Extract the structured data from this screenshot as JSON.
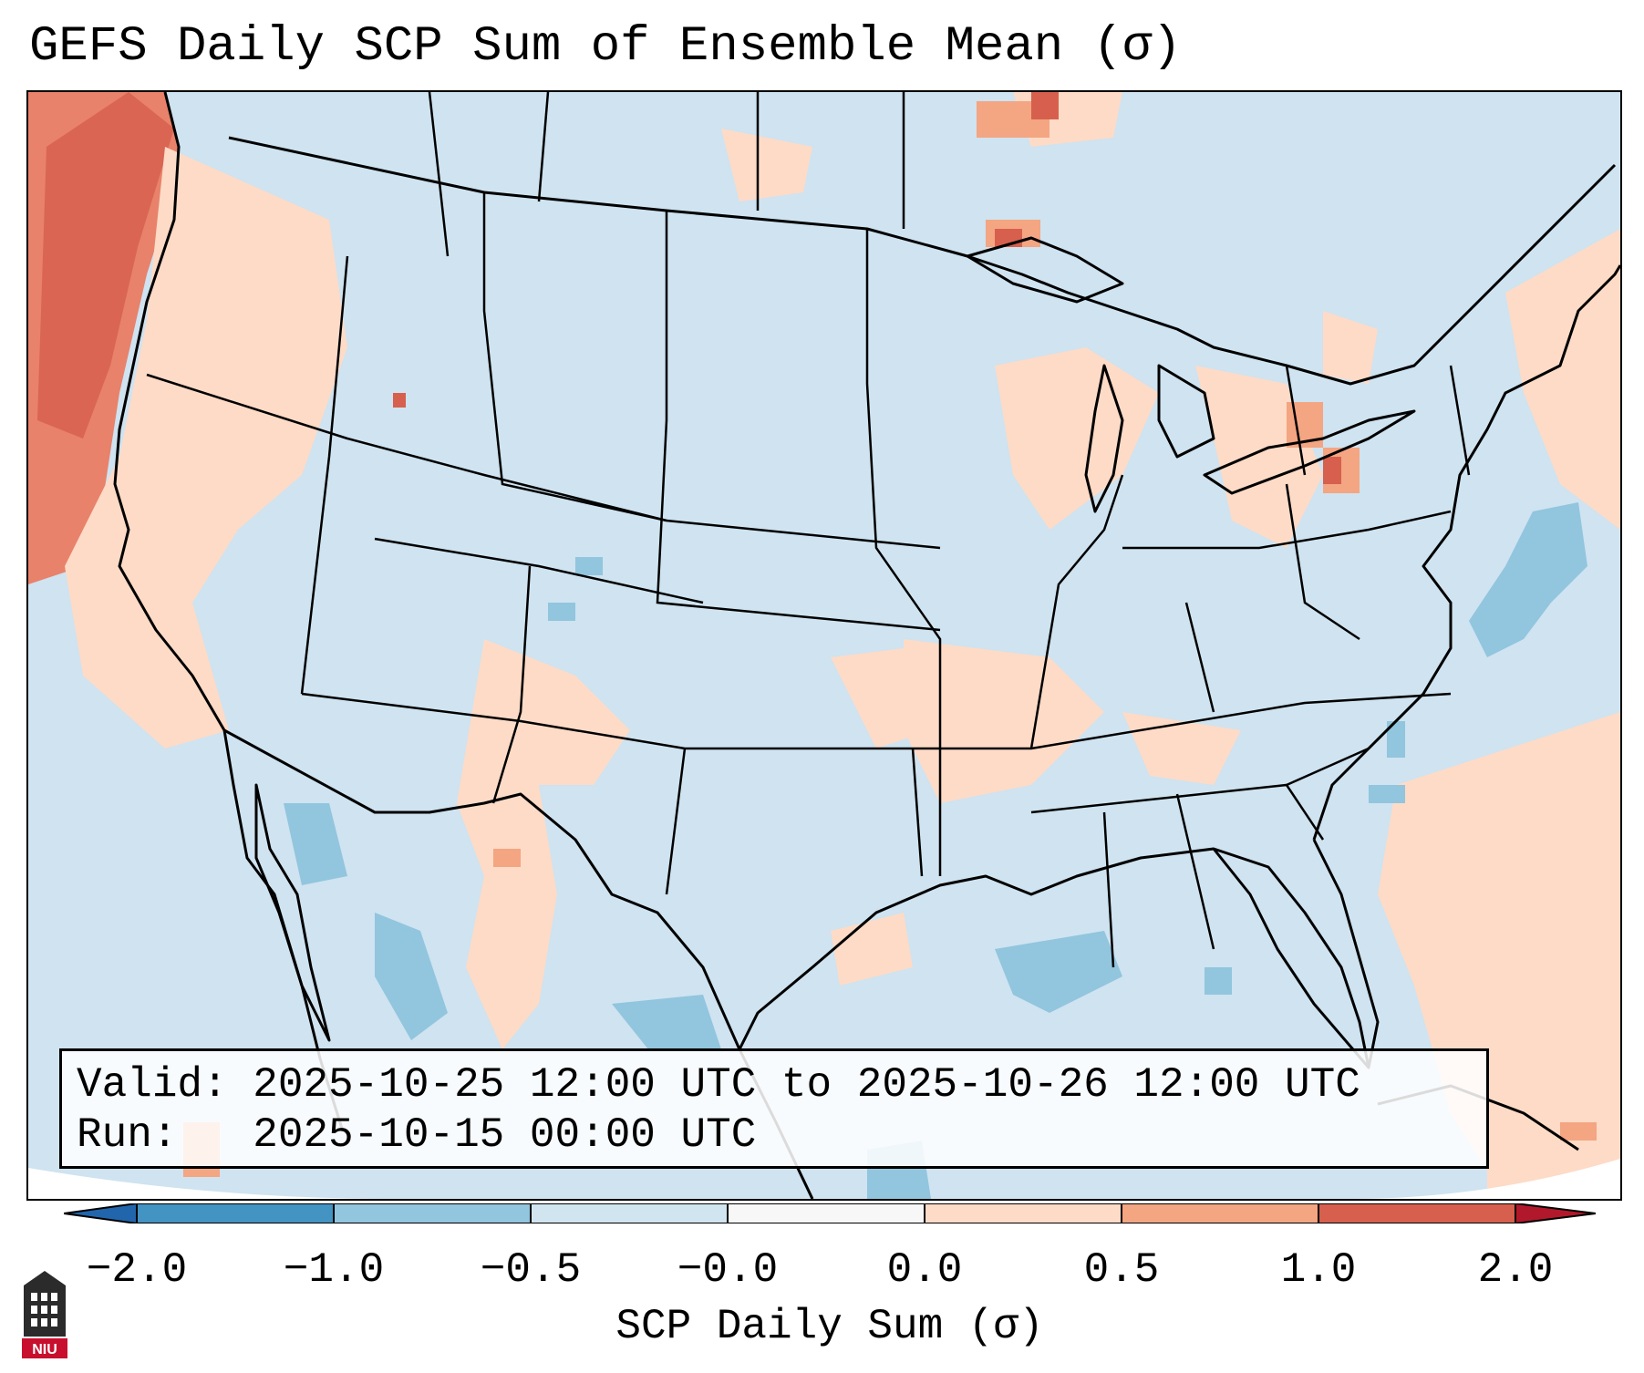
{
  "title": "GEFS Daily SCP Sum of Ensemble Mean (σ)",
  "valid_box": {
    "valid_line": "Valid: 2025-10-25 12:00 UTC to 2025-10-26 12:00 UTC",
    "run_line": "Run:   2025-10-15 00:00 UTC"
  },
  "colorbar": {
    "label": "SCP Daily Sum (σ)",
    "ticks": [
      "−2.0",
      "−1.0",
      "−0.5",
      "−0.0",
      "0.0",
      "0.5",
      "1.0",
      "2.0"
    ],
    "bins": [
      {
        "range": "< -2.0",
        "color": "#2166ac"
      },
      {
        "range": "-2.0 to -1.0",
        "color": "#4393c3"
      },
      {
        "range": "-1.0 to -0.5",
        "color": "#92c5de"
      },
      {
        "range": "-0.5 to -0.0",
        "color": "#d1e5f0"
      },
      {
        "range": "-0.0 to 0.0",
        "color": "#f7f7f7"
      },
      {
        "range": "0.0 to 0.5",
        "color": "#fddbc7"
      },
      {
        "range": "0.5 to 1.0",
        "color": "#f4a582"
      },
      {
        "range": "1.0 to 2.0",
        "color": "#d6604d"
      },
      {
        "range": "> 2.0",
        "color": "#b2182b"
      }
    ]
  },
  "map": {
    "region": "Contiguous United States",
    "background_value_color": "#cfe3f0"
  },
  "logo": {
    "text": "NIU",
    "color": "#c8102e"
  }
}
